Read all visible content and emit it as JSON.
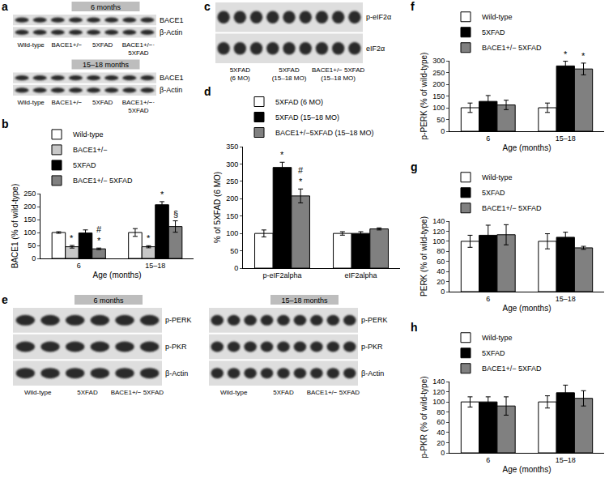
{
  "chart_data": [
    {
      "panel": "b",
      "type": "bar",
      "categories": [
        "6",
        "15–18"
      ],
      "x_label": "Age (months)",
      "y_label": "BACE1 (% of wild-type)",
      "ylim": [
        0,
        250
      ],
      "yticks": [
        0,
        50,
        100,
        150,
        200,
        250
      ],
      "grid": false,
      "legend": "top",
      "series": [
        {
          "name": "Wild-type",
          "color": "#ffffff",
          "values": [
            100,
            100
          ],
          "errors": [
            3,
            15
          ]
        },
        {
          "name": "BACE1+/−",
          "color": "#c8c8c8",
          "values": [
            45,
            45
          ],
          "errors": [
            5,
            4
          ],
          "significance": [
            "*",
            "*"
          ]
        },
        {
          "name": "5XFAD",
          "color": "#000000",
          "values": [
            98,
            207
          ],
          "errors": [
            12,
            12
          ],
          "significance": [
            null,
            "*"
          ]
        },
        {
          "name": "BACE1+/− 5XFAD",
          "color": "#808080",
          "values": [
            37,
            123
          ],
          "errors": [
            3,
            22
          ],
          "significance": [
            "#\n*",
            "§"
          ]
        }
      ]
    },
    {
      "panel": "d",
      "type": "bar",
      "categories": [
        "p-eIF2alpha",
        "eIF2alpha"
      ],
      "y_label": "% of 5XFAD (6 MO)",
      "ylim": [
        0,
        350
      ],
      "yticks": [
        0,
        50,
        100,
        150,
        200,
        250,
        300,
        350
      ],
      "grid": false,
      "legend": "top",
      "series": [
        {
          "name": "5XFAD (6 MO)",
          "color": "#ffffff",
          "values": [
            100,
            100
          ],
          "errors": [
            10,
            5
          ]
        },
        {
          "name": "5XFAD (15–18 MO)",
          "color": "#000000",
          "values": [
            290,
            100
          ],
          "errors": [
            15,
            5
          ],
          "significance": [
            "*",
            null
          ]
        },
        {
          "name": "BACE1+/−5XFAD (15–18 MO)",
          "color": "#808080",
          "values": [
            208,
            113
          ],
          "errors": [
            20,
            3
          ],
          "significance": [
            "#\n*",
            null
          ]
        }
      ]
    },
    {
      "panel": "f",
      "type": "bar",
      "categories": [
        "6",
        "15–18"
      ],
      "x_label": "Age (months)",
      "y_label": "p-PERK (% of wild-type)",
      "ylim": [
        0,
        300
      ],
      "yticks": [
        0,
        50,
        100,
        150,
        200,
        250,
        300
      ],
      "grid": false,
      "legend": "top",
      "series": [
        {
          "name": "Wild-type",
          "color": "#ffffff",
          "values": [
            100,
            100
          ],
          "errors": [
            20,
            20
          ]
        },
        {
          "name": "5XFAD",
          "color": "#000000",
          "values": [
            127,
            278
          ],
          "errors": [
            25,
            20
          ],
          "significance": [
            null,
            "*"
          ]
        },
        {
          "name": "BACE1+/− 5XFAD",
          "color": "#808080",
          "values": [
            112,
            265
          ],
          "errors": [
            20,
            25
          ],
          "significance": [
            null,
            "*"
          ]
        }
      ]
    },
    {
      "panel": "g",
      "type": "bar",
      "categories": [
        "6",
        "15–18"
      ],
      "x_label": "Age (months)",
      "y_label": "PERK (% of wild-type)",
      "ylim": [
        0,
        140
      ],
      "yticks": [
        0,
        20,
        40,
        60,
        80,
        100,
        120,
        140
      ],
      "grid": false,
      "legend": "top",
      "series": [
        {
          "name": "Wild-type",
          "color": "#ffffff",
          "values": [
            100,
            100
          ],
          "errors": [
            12,
            15
          ]
        },
        {
          "name": "5XFAD",
          "color": "#000000",
          "values": [
            112,
            108
          ],
          "errors": [
            20,
            10
          ]
        },
        {
          "name": "BACE1+/− 5XFAD",
          "color": "#808080",
          "values": [
            113,
            87
          ],
          "errors": [
            20,
            3
          ]
        }
      ]
    },
    {
      "panel": "h",
      "type": "bar",
      "categories": [
        "6",
        "15–18"
      ],
      "x_label": "Age (months)",
      "y_label": "p-PKR (% of wild-type)",
      "ylim": [
        0,
        140
      ],
      "yticks": [
        0,
        20,
        40,
        60,
        80,
        100,
        120,
        140
      ],
      "grid": false,
      "legend": "top",
      "series": [
        {
          "name": "Wild-type",
          "color": "#ffffff",
          "values": [
            100,
            100
          ],
          "errors": [
            10,
            12
          ]
        },
        {
          "name": "5XFAD",
          "color": "#000000",
          "values": [
            100,
            118
          ],
          "errors": [
            10,
            15
          ]
        },
        {
          "name": "BACE1+/− 5XFAD",
          "color": "#808080",
          "values": [
            92,
            107
          ],
          "errors": [
            18,
            15
          ]
        }
      ]
    }
  ],
  "blots": [
    {
      "panel": "a",
      "sections": [
        {
          "title": "6 months",
          "rows": [
            "BACE1",
            "β-Actin"
          ],
          "lanes": [
            "Wild-type",
            "BACE1+/−",
            "5XFAD",
            "BACE1+/−·\n5XFAD"
          ]
        },
        {
          "title": "15–18 months",
          "rows": [
            "BACE1",
            "β-Actin"
          ],
          "lanes": [
            "Wild-type",
            "BACE1+/−",
            "5XFAD",
            "BACE1+/−·\n5XFAD"
          ]
        }
      ]
    },
    {
      "panel": "c",
      "sections": [
        {
          "rows": [
            "p-eIF2α",
            "eIF2α"
          ],
          "lanes": [
            "5XFAD\n(6 MO)",
            "5XFAD\n(15–18 MO)",
            "BACE1+/− 5XFAD\n(15–18 MO)"
          ]
        }
      ]
    },
    {
      "panel": "e",
      "sections": [
        {
          "title": "6 months",
          "rows": [
            "p-PERK",
            "p-PKR",
            "β-Actin"
          ],
          "lanes": [
            "Wild-type",
            "5XFAD",
            "BACE1+/− 5XFAD"
          ]
        },
        {
          "title": "15–18 months",
          "rows": [
            "p-PERK",
            "p-PKR",
            "β-Actin"
          ],
          "lanes": [
            "Wild-type",
            "5XFAD",
            "BACE1+/− 5XFAD"
          ]
        }
      ]
    }
  ]
}
